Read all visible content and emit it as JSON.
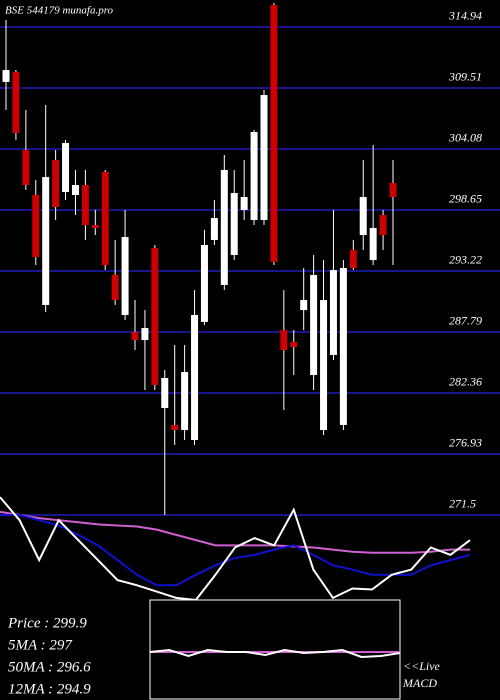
{
  "chart_data": [
    {
      "type": "candlestick",
      "title": "BSE 544179 munafa.pro",
      "up_color": "#ffffff",
      "down_color": "#cc0000",
      "wick_color": "#ffffff",
      "ylim": [
        271.05,
        317.34
      ],
      "yticks": [
        314.94,
        309.51,
        304.08,
        298.65,
        293.22,
        287.79,
        282.36,
        276.93,
        271.5
      ],
      "grid": true,
      "grid_color": "#16168a",
      "candles": [
        {
          "open": 310.04,
          "high": 315.56,
          "low": 307.55,
          "close": 311.11
        },
        {
          "open": 310.93,
          "high": 311.11,
          "low": 304.88,
          "close": 305.5
        },
        {
          "open": 303.99,
          "high": 307.55,
          "low": 300.43,
          "close": 300.87
        },
        {
          "open": 299.98,
          "high": 301.32,
          "low": 293.75,
          "close": 294.46
        },
        {
          "open": 290.19,
          "high": 307.99,
          "low": 289.57,
          "close": 301.58
        },
        {
          "open": 303.1,
          "high": 303.99,
          "low": 297.76,
          "close": 298.91
        },
        {
          "open": 300.25,
          "high": 304.88,
          "low": 299.54,
          "close": 304.61
        },
        {
          "open": 299.98,
          "high": 302.21,
          "low": 298.2,
          "close": 300.87
        },
        {
          "open": 300.87,
          "high": 302.21,
          "low": 295.98,
          "close": 297.31
        },
        {
          "open": 297.31,
          "high": 298.65,
          "low": 296.42,
          "close": 297.04
        },
        {
          "open": 302.03,
          "high": 302.21,
          "low": 293.3,
          "close": 293.75
        },
        {
          "open": 292.86,
          "high": 295.98,
          "low": 290.19,
          "close": 290.63
        },
        {
          "open": 289.3,
          "high": 298.65,
          "low": 288.85,
          "close": 296.24
        },
        {
          "open": 287.79,
          "high": 290.63,
          "low": 286.18,
          "close": 287.07
        },
        {
          "open": 287.07,
          "high": 289.74,
          "low": 282.62,
          "close": 288.14
        },
        {
          "open": 295.26,
          "high": 295.53,
          "low": 282.62,
          "close": 283.07
        },
        {
          "open": 281.02,
          "high": 284.4,
          "low": 271.49,
          "close": 283.69
        },
        {
          "open": 279.51,
          "high": 286.63,
          "low": 277.73,
          "close": 279.06
        },
        {
          "open": 279.06,
          "high": 286.63,
          "low": 278.17,
          "close": 284.22
        },
        {
          "open": 278.17,
          "high": 291.52,
          "low": 277.73,
          "close": 289.3
        },
        {
          "open": 288.68,
          "high": 296.87,
          "low": 288.41,
          "close": 295.53
        },
        {
          "open": 295.98,
          "high": 299.54,
          "low": 295.53,
          "close": 297.93
        },
        {
          "open": 291.97,
          "high": 303.54,
          "low": 291.52,
          "close": 302.21
        },
        {
          "open": 294.64,
          "high": 302.21,
          "low": 294.19,
          "close": 300.16
        },
        {
          "open": 298.65,
          "high": 303.1,
          "low": 297.76,
          "close": 299.8
        },
        {
          "open": 297.76,
          "high": 305.77,
          "low": 297.31,
          "close": 305.59
        },
        {
          "open": 297.76,
          "high": 309.33,
          "low": 297.31,
          "close": 308.88
        },
        {
          "open": 316.89,
          "high": 317.07,
          "low": 293.75,
          "close": 294.02
        },
        {
          "open": 287.96,
          "high": 291.52,
          "low": 280.84,
          "close": 286.18
        },
        {
          "open": 286.9,
          "high": 287.96,
          "low": 283.96,
          "close": 286.45
        },
        {
          "open": 289.74,
          "high": 293.48,
          "low": 287.96,
          "close": 290.63
        },
        {
          "open": 283.96,
          "high": 294.64,
          "low": 282.62,
          "close": 292.86
        },
        {
          "open": 279.06,
          "high": 294.19,
          "low": 278.62,
          "close": 290.63
        },
        {
          "open": 285.74,
          "high": 298.65,
          "low": 285.29,
          "close": 293.3
        },
        {
          "open": 279.51,
          "high": 294.19,
          "low": 279.06,
          "close": 293.48
        },
        {
          "open": 295.08,
          "high": 295.98,
          "low": 293.3,
          "close": 293.48
        },
        {
          "open": 296.42,
          "high": 303.1,
          "low": 295.08,
          "close": 299.8
        },
        {
          "open": 294.19,
          "high": 304.43,
          "low": 293.75,
          "close": 297.04
        },
        {
          "open": 298.2,
          "high": 298.65,
          "low": 295.08,
          "close": 296.42
        },
        {
          "open": 301.05,
          "high": 303.1,
          "low": 293.75,
          "close": 299.8
        }
      ]
    },
    {
      "type": "line",
      "xlim": [
        0,
        24
      ],
      "ylim": [
        0,
        100
      ],
      "x": [
        0,
        1,
        2,
        3,
        4,
        5,
        6,
        7,
        8,
        9,
        10,
        11,
        12,
        13,
        14,
        15,
        16,
        17,
        18,
        19,
        20,
        21,
        22,
        23,
        24
      ],
      "series": [
        {
          "color": "#d060d0",
          "values": [
            84,
            81,
            78,
            76,
            74,
            72,
            71,
            70,
            67,
            62,
            57,
            52,
            52,
            52,
            52,
            51,
            50,
            48,
            46,
            45,
            45,
            45,
            46,
            48,
            48
          ]
        },
        {
          "color": "#1010d0",
          "values": [
            81,
            81,
            76,
            71,
            62,
            52,
            38,
            24,
            14,
            14,
            24,
            33,
            40,
            43,
            48,
            52,
            43,
            33,
            29,
            24,
            24,
            24,
            33,
            38,
            43
          ]
        },
        {
          "color": "#ffffff",
          "values": [
            98,
            76,
            38,
            76,
            57,
            38,
            19,
            14,
            8,
            2,
            0,
            24,
            50,
            59,
            52,
            86,
            29,
            2,
            11,
            10,
            24,
            29,
            50,
            43,
            57
          ]
        }
      ]
    },
    {
      "type": "line",
      "xlim": [
        0,
        13
      ],
      "ylim": [
        0,
        100
      ],
      "box": true,
      "x": [
        0,
        1,
        2,
        3,
        4,
        5,
        6,
        7,
        8,
        9,
        10,
        11,
        12,
        13
      ],
      "series": [
        {
          "color": "#d060d0",
          "values": [
            48,
            48,
            48,
            48,
            48,
            48,
            48,
            48,
            48,
            48,
            48,
            48,
            48,
            48
          ]
        },
        {
          "color": "#ffffff",
          "values": [
            48,
            50,
            44,
            50,
            48,
            48,
            45,
            50,
            47,
            48,
            50,
            43,
            44,
            47
          ]
        }
      ]
    }
  ],
  "info": [
    "Price   : 299.9",
    "5MA : 297",
    "50MA : 296.6",
    "12MA : 294.9"
  ],
  "live": "<<Live",
  "macd_label": "MACD"
}
